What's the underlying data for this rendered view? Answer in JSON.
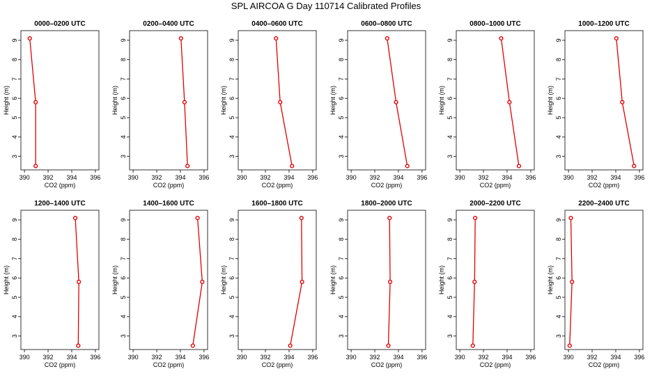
{
  "title": "SPL AIRCOA G  Day 110714  Calibrated Profiles",
  "chart_data": {
    "type": "line",
    "layout": "2 rows x 6 panels",
    "xlabel": "CO2 (ppm)",
    "ylabel": "Height (m)",
    "xlim": [
      389.7,
      396.3
    ],
    "ylim": [
      2.3,
      9.5
    ],
    "xticks": [
      390,
      392,
      394,
      396
    ],
    "yticks": [
      3,
      4,
      5,
      6,
      7,
      8,
      9
    ],
    "grid": false,
    "heights": [
      9.1,
      5.8,
      2.5
    ],
    "panels": [
      {
        "title": "0000–0200 UTC",
        "co2": [
          390.45,
          390.95,
          390.95
        ]
      },
      {
        "title": "0200–0400 UTC",
        "co2": [
          394.05,
          394.35,
          394.6
        ]
      },
      {
        "title": "0400–0600 UTC",
        "co2": [
          392.9,
          393.25,
          394.25
        ]
      },
      {
        "title": "0600–0800 UTC",
        "co2": [
          393.05,
          393.8,
          394.75
        ]
      },
      {
        "title": "0800–1000 UTC",
        "co2": [
          393.5,
          394.2,
          395.0
        ]
      },
      {
        "title": "1000–1200 UTC",
        "co2": [
          394.05,
          394.55,
          395.55
        ]
      },
      {
        "title": "1200–1400 UTC",
        "co2": [
          394.3,
          394.6,
          394.55
        ]
      },
      {
        "title": "1400–1600 UTC",
        "co2": [
          395.45,
          395.85,
          395.05
        ]
      },
      {
        "title": "1600–1800 UTC",
        "co2": [
          395.05,
          395.1,
          394.1
        ]
      },
      {
        "title": "1800–2000 UTC",
        "co2": [
          393.25,
          393.3,
          393.15
        ]
      },
      {
        "title": "2000–2200 UTC",
        "co2": [
          391.3,
          391.25,
          391.1
        ]
      },
      {
        "title": "2200–2400 UTC",
        "co2": [
          390.2,
          390.3,
          390.1
        ]
      }
    ]
  }
}
